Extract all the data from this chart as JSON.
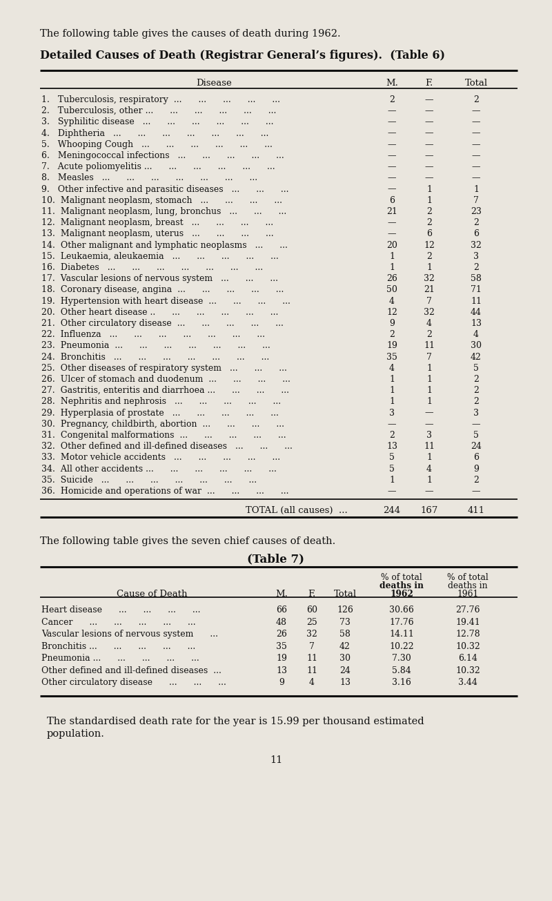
{
  "bg_color": "#eae6de",
  "text_color": "#000000",
  "page_title": "The following table gives the causes of death during 1962.",
  "table6_title": "Detailed Causes of Death (Registrar General’s figures).  (Table 6)",
  "table6_rows": [
    [
      "1.   Tuberculosis, respiratory  ...      ...      ...      ...      ...",
      "2",
      "—",
      "2"
    ],
    [
      "2.   Tuberculosis, other ...      ...      ...      ...      ...      ...",
      "—",
      "—",
      "—"
    ],
    [
      "3.   Syphilitic disease   ...      ...      ...      ...      ...      ...",
      "—",
      "—",
      "—"
    ],
    [
      "4.   Diphtheria   ...      ...      ...      ...      ...      ...      ...",
      "—",
      "—",
      "—"
    ],
    [
      "5.   Whooping Cough   ...      ...      ...      ...      ...      ...",
      "—",
      "—",
      "—"
    ],
    [
      "6.   Meningococcal infections   ...      ...      ...      ...      ...",
      "—",
      "—",
      "—"
    ],
    [
      "7.   Acute poliomyelitis ...      ...      ...      ...      ...      ...",
      "—",
      "—",
      "—"
    ],
    [
      "8.   Measles   ...      ...      ...      ...      ...      ...      ...",
      "—",
      "—",
      "—"
    ],
    [
      "9.   Other infective and parasitic diseases   ...      ...      ...",
      "—",
      "1",
      "1"
    ],
    [
      "10.  Malignant neoplasm, stomach   ...      ...      ...      ...",
      "6",
      "1",
      "7"
    ],
    [
      "11.  Malignant neoplasm, lung, bronchus   ...      ...      ...",
      "21",
      "2",
      "23"
    ],
    [
      "12.  Malignant neoplasm, breast   ...      ...      ...      ...",
      "—",
      "2",
      "2"
    ],
    [
      "13.  Malignant neoplasm, uterus   ...      ...      ...      ...",
      "—",
      "6",
      "6"
    ],
    [
      "14.  Other malignant and lymphatic neoplasms   ...      ...",
      "20",
      "12",
      "32"
    ],
    [
      "15.  Leukaemia, aleukaemia   ...      ...      ...      ...      ...",
      "1",
      "2",
      "3"
    ],
    [
      "16.  Diabetes   ...      ...      ...      ...      ...      ...      ...",
      "1",
      "1",
      "2"
    ],
    [
      "17.  Vascular lesions of nervous system   ...      ...      ...",
      "26",
      "32",
      "58"
    ],
    [
      "18.  Coronary disease, angina  ...      ...      ...      ...      ...",
      "50",
      "21",
      "71"
    ],
    [
      "19.  Hypertension with heart disease  ...      ...      ...      ...",
      "4",
      "7",
      "11"
    ],
    [
      "20.  Other heart disease ..      ...      ...      ...      ...      ...",
      "12",
      "32",
      "44"
    ],
    [
      "21.  Other circulatory disease  ...      ...      ...      ...      ...",
      "9",
      "4",
      "13"
    ],
    [
      "22.  Influenza   ...      ...      ...      ...      ...      ...      ...",
      "2",
      "2",
      "4"
    ],
    [
      "23.  Pneumonia  ...      ...      ...      ...      ...      ...      ...",
      "19",
      "11",
      "30"
    ],
    [
      "24.  Bronchitis   ...      ...      ...      ...      ...      ...      ...",
      "35",
      "7",
      "42"
    ],
    [
      "25.  Other diseases of respiratory system   ...      ...      ...",
      "4",
      "1",
      "5"
    ],
    [
      "26.  Ulcer of stomach and duodenum  ...      ...      ...      ...",
      "1",
      "1",
      "2"
    ],
    [
      "27.  Gastritis, enteritis and diarrhoea ...      ...      ...      ...",
      "1",
      "1",
      "2"
    ],
    [
      "28.  Nephritis and nephrosis   ...      ...      ...      ...      ...",
      "1",
      "1",
      "2"
    ],
    [
      "29.  Hyperplasia of prostate   ...      ...      ...      ...      ...",
      "3",
      "—",
      "3"
    ],
    [
      "30.  Pregnancy, childbirth, abortion  ...      ...      ...      ...",
      "—",
      "—",
      "—"
    ],
    [
      "31.  Congenital malformations  ...      ...      ...      ...      ...",
      "2",
      "3",
      "5"
    ],
    [
      "32.  Other defined and ill-defined diseases   ...      ...      ...",
      "13",
      "11",
      "24"
    ],
    [
      "33.  Motor vehicle accidents   ...      ...      ...      ...      ...",
      "5",
      "1",
      "6"
    ],
    [
      "34.  All other accidents ...      ...      ...      ...      ...      ...",
      "5",
      "4",
      "9"
    ],
    [
      "35.  Suicide   ...      ...      ...      ...      ...      ...      ...",
      "1",
      "1",
      "2"
    ],
    [
      "36.  Homicide and operations of war  ...      ...      ...      ...",
      "—",
      "—",
      "—"
    ]
  ],
  "table6_total": [
    "TOTAL (all causes)  ...",
    "244",
    "167",
    "411"
  ],
  "table7_intro": "The following table gives the seven chief causes of death.",
  "table7_title": "(Table 7)",
  "table7_rows": [
    [
      "Heart disease      ...      ...      ...      ...",
      "66",
      "60",
      "126",
      "30.66",
      "27.76"
    ],
    [
      "Cancer      ...      ...      ...      ...      ...",
      "48",
      "25",
      "73",
      "17.76",
      "19.41"
    ],
    [
      "Vascular lesions of nervous system      ...",
      "26",
      "32",
      "58",
      "14.11",
      "12.78"
    ],
    [
      "Bronchitis ...      ...      ...      ...      ...",
      "35",
      "7",
      "42",
      "10.22",
      "10.32"
    ],
    [
      "Pneumonia ...      ...      ...      ...      ...",
      "19",
      "11",
      "30",
      "7.30",
      "6.14"
    ],
    [
      "Other defined and ill-defined diseases  ...",
      "13",
      "11",
      "24",
      "5.84",
      "10.32"
    ],
    [
      "Other circulatory disease      ...      ...      ...",
      "9",
      "4",
      "13",
      "3.16",
      "3.44"
    ]
  ],
  "footer_text": "The standardised death rate for the year is 15.99 per thousand estimated\npopulation.",
  "page_number": "11"
}
